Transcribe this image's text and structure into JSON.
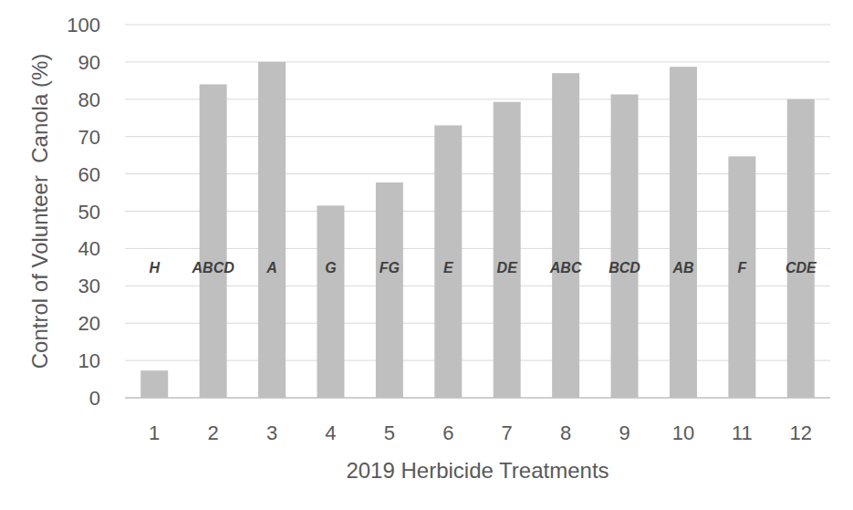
{
  "chart_data": {
    "type": "bar",
    "y_label": "Control of Volunteer  Canola (%)",
    "x_label": "2019 Herbicide Treatments",
    "categories": [
      "1",
      "2",
      "3",
      "4",
      "5",
      "6",
      "7",
      "8",
      "9",
      "10",
      "11",
      "12"
    ],
    "values": [
      7.3,
      84,
      90,
      51.5,
      57.7,
      73,
      79.3,
      87,
      81.3,
      88.7,
      64.7,
      80
    ],
    "annotations": [
      "H",
      "ABCD",
      "A",
      "G",
      "FG",
      "E",
      "DE",
      "ABC",
      "BCD",
      "AB",
      "F",
      "CDE"
    ],
    "color": "#bfbfbf",
    "ylim": [
      0,
      100
    ],
    "yticks": [
      0,
      10,
      20,
      30,
      40,
      50,
      60,
      70,
      80,
      90,
      100
    ],
    "grid": true
  }
}
